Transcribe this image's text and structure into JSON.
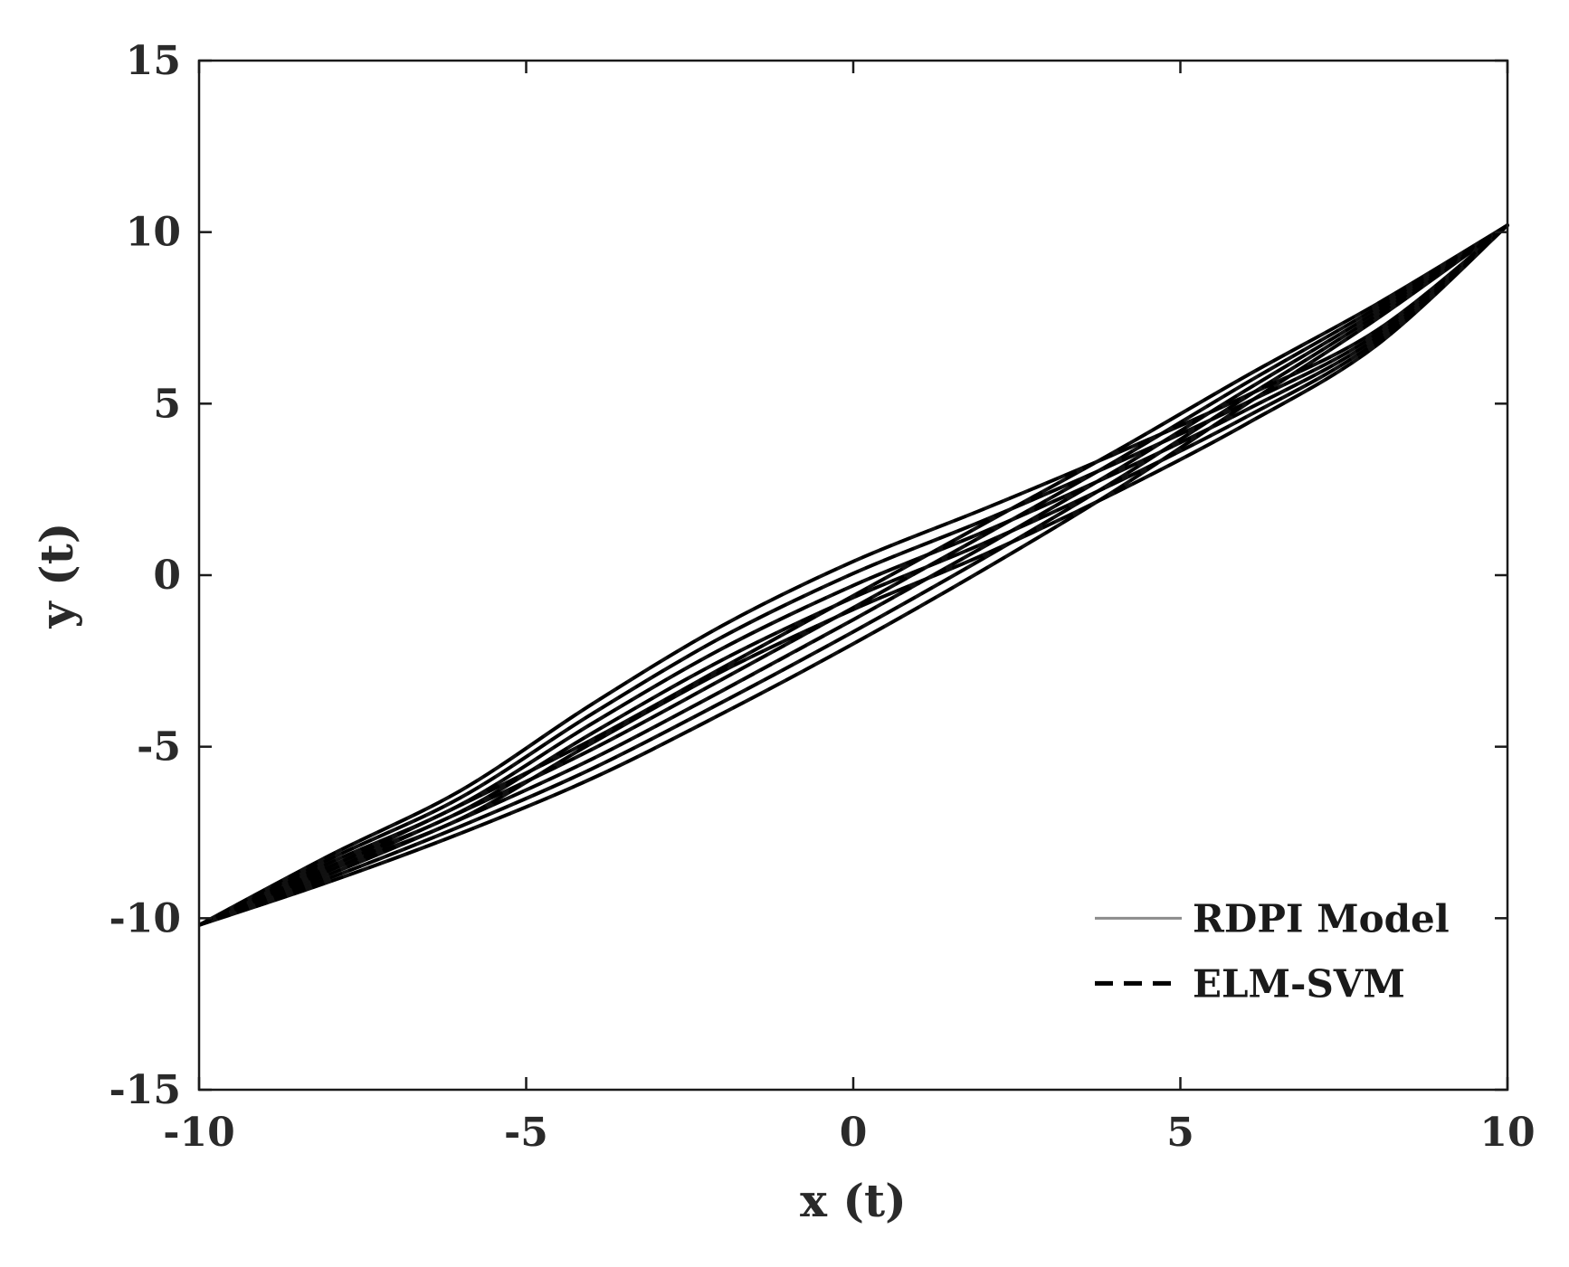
{
  "chart_data": {
    "type": "line",
    "title": "",
    "xlabel": "x (t)",
    "ylabel": "y (t)",
    "xlim": [
      -10,
      10
    ],
    "ylim": [
      -15,
      15
    ],
    "xticks": [
      -10,
      -5,
      0,
      5,
      10
    ],
    "yticks": [
      -15,
      -10,
      -5,
      0,
      5,
      10,
      15
    ],
    "xtick_labels": [
      "-10",
      "-5",
      "0",
      "5",
      "10"
    ],
    "ytick_labels": [
      "-15",
      "-10",
      "-5",
      "0",
      "5",
      "10",
      "15"
    ],
    "grid": false,
    "legend_position": "bottom-right",
    "series": [
      {
        "name": "RDPI Model",
        "style": "solid",
        "color": "#8c8c8c",
        "loops": [
          {
            "ascending": [
              [
                -10,
                -10.2
              ],
              [
                -8,
                -8.5
              ],
              [
                -6,
                -6.7
              ],
              [
                -4,
                -4.8
              ],
              [
                -2,
                -2.7
              ],
              [
                0,
                -0.6
              ],
              [
                2,
                1.5
              ],
              [
                4,
                3.6
              ],
              [
                6,
                5.8
              ],
              [
                8,
                7.9
              ],
              [
                10,
                10.2
              ]
            ],
            "descending": [
              [
                10,
                10.2
              ],
              [
                8,
                6.7
              ],
              [
                6,
                4.4
              ],
              [
                4,
                2.4
              ],
              [
                2,
                0.6
              ],
              [
                0,
                -1.0
              ],
              [
                -2,
                -2.8
              ],
              [
                -4,
                -4.9
              ],
              [
                -6,
                -7.1
              ],
              [
                -8,
                -8.6
              ],
              [
                -10,
                -10.2
              ]
            ]
          }
        ]
      },
      {
        "name": "ELM-SVM",
        "style": "dashed",
        "color": "#000000",
        "loops": [
          {
            "ascending": [
              [
                -10,
                -10.2
              ],
              [
                -8,
                -8.5
              ],
              [
                -6,
                -6.7
              ],
              [
                -4,
                -4.8
              ],
              [
                -2,
                -2.7
              ],
              [
                0,
                -0.6
              ],
              [
                2,
                1.5
              ],
              [
                4,
                3.6
              ],
              [
                6,
                5.8
              ],
              [
                8,
                7.9
              ],
              [
                10,
                10.2
              ]
            ],
            "descending": [
              [
                10,
                10.2
              ],
              [
                8,
                6.7
              ],
              [
                6,
                4.4
              ],
              [
                4,
                2.4
              ],
              [
                2,
                0.6
              ],
              [
                0,
                -1.0
              ],
              [
                -2,
                -2.8
              ],
              [
                -4,
                -4.9
              ],
              [
                -6,
                -7.1
              ],
              [
                -8,
                -8.6
              ],
              [
                -10,
                -10.2
              ]
            ]
          }
        ]
      }
    ]
  }
}
